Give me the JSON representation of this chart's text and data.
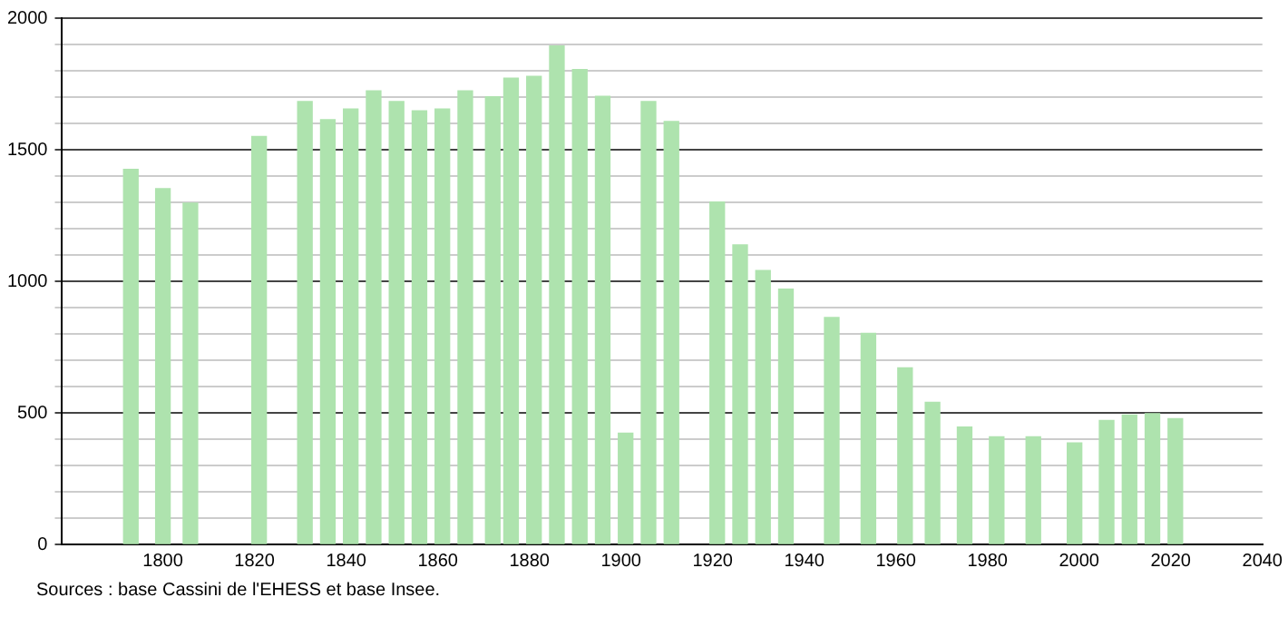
{
  "chart_data": {
    "type": "bar",
    "x": [
      1793,
      1800,
      1806,
      1821,
      1831,
      1836,
      1841,
      1846,
      1851,
      1856,
      1861,
      1866,
      1872,
      1876,
      1881,
      1886,
      1891,
      1896,
      1901,
      1906,
      1911,
      1921,
      1926,
      1931,
      1936,
      1946,
      1954,
      1962,
      1968,
      1975,
      1982,
      1990,
      1999,
      2006,
      2011,
      2016,
      2021
    ],
    "values": [
      1425,
      1352,
      1297,
      1550,
      1683,
      1614,
      1655,
      1724,
      1683,
      1648,
      1655,
      1724,
      1701,
      1772,
      1779,
      1894,
      1805,
      1703,
      423,
      1683,
      1607,
      1301,
      1138,
      1041,
      970,
      862,
      802,
      671,
      540,
      446,
      409,
      409,
      386,
      471,
      492,
      497,
      478
    ],
    "color": "#aee3ae",
    "xlim": [
      1778,
      2040
    ],
    "xticks": [
      1800,
      1820,
      1840,
      1860,
      1880,
      1900,
      1920,
      1940,
      1960,
      1980,
      2000,
      2020,
      2040
    ],
    "ylim": [
      0,
      2000
    ],
    "yticks": [
      0,
      {
        "value": 100,
        "label": null
      },
      {
        "value": 200,
        "label": null
      },
      {
        "value": 300,
        "label": null
      },
      {
        "value": 400,
        "label": null
      },
      500,
      {
        "value": 600,
        "label": null
      },
      {
        "value": 700,
        "label": null
      },
      {
        "value": 800,
        "label": null
      },
      {
        "value": 900,
        "label": null
      },
      1000,
      {
        "value": 1100,
        "label": null
      },
      {
        "value": 1200,
        "label": null
      },
      {
        "value": 1300,
        "label": null
      },
      {
        "value": 1400,
        "label": null
      },
      1500,
      {
        "value": 1600,
        "label": null
      },
      {
        "value": 1700,
        "label": null
      },
      {
        "value": 1800,
        "label": null
      },
      {
        "value": 1900,
        "label": null
      },
      2000
    ],
    "grid": "y",
    "legend": false,
    "annotations": [
      "Sources : base Cassini de l'EHESS et base Insee."
    ]
  }
}
